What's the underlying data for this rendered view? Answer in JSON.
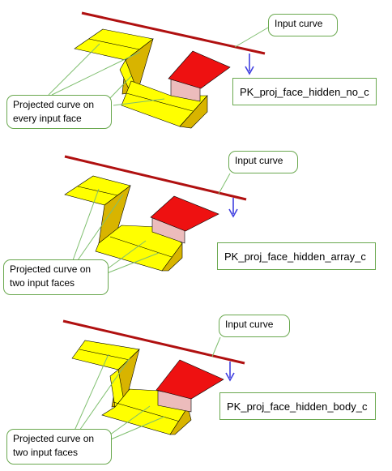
{
  "colors": {
    "face_yellow": "#ffff00",
    "face_yellow_dark": "#d8b400",
    "face_red": "#ee1111",
    "face_pink": "#ecbcbc",
    "input_curve": "#b01010",
    "arrow": "#4040e0",
    "callout_border": "#6aa84f",
    "projected_line": "#7fbf6f"
  },
  "panels": [
    {
      "input_curve_label": "Input curve",
      "option_label": "PK_proj_face_hidden_no_c",
      "projected_label": "Projected curve on every input face"
    },
    {
      "input_curve_label": "Input curve",
      "option_label": "PK_proj_face_hidden_array_c",
      "projected_label": "Projected curve on two input faces"
    },
    {
      "input_curve_label": "Input curve",
      "option_label": "PK_proj_face_hidden_body_c",
      "projected_label": "Projected curve on two input faces"
    }
  ]
}
